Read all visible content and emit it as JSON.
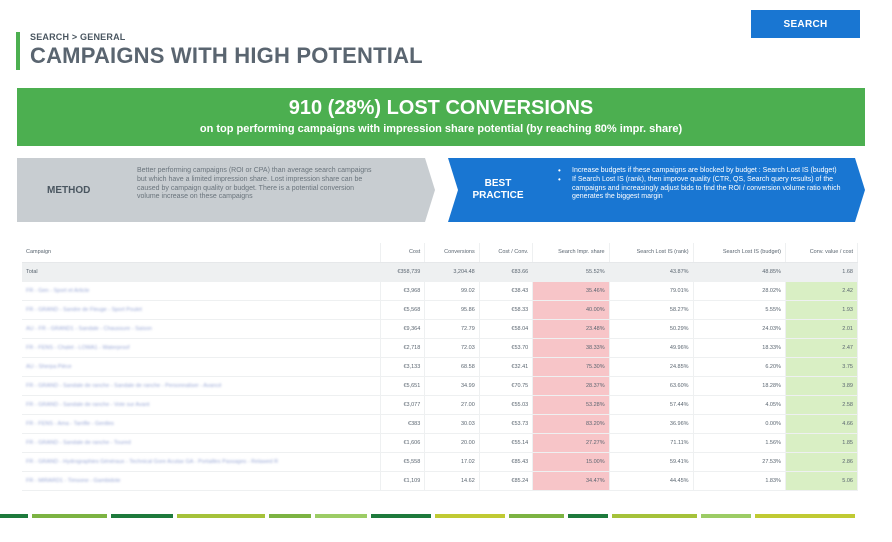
{
  "header": {
    "breadcrumb": "SEARCH > GENERAL",
    "title": "CAMPAIGNS WITH HIGH POTENTIAL"
  },
  "search_button": {
    "label": "SEARCH"
  },
  "banner": {
    "title": "910 (28%) LOST CONVERSIONS",
    "subtitle": "on top performing campaigns with impression share potential (by reaching 80% impr. share)"
  },
  "method": {
    "label": "METHOD",
    "text": "Better performing campaigns (ROI or CPA) than average search campaigns but which have a limited impression share. Lost impression share can be caused by campaign quality or budget. There is a potential conversion volume increase on these campaigns"
  },
  "best_practice": {
    "label": "BEST PRACTICE",
    "items": [
      "Increase budgets if these campaigns are blocked by budget : Search Lost IS (budget)",
      "If Search Lost IS (rank), then improve quality (CTR, QS, Search query results) of the campaigns and increasingly adjust bids to find the ROI / conversion volume ratio which generates the biggest margin"
    ]
  },
  "table": {
    "columns": [
      "Campaign",
      "Cost",
      "Conversions",
      "Cost / Conv.",
      "Search Impr. share",
      "Search Lost IS (rank)",
      "Search Lost IS (budget)",
      "Conv. value / cost"
    ],
    "total": [
      "Total",
      "€358,739",
      "3,204.48",
      "€83.66",
      "55.52%",
      "43.87%",
      "48.85%",
      "1.68"
    ],
    "rows": [
      [
        "FR - Gen - Sport et Article",
        "€3,968",
        "99.02",
        "€38.43",
        "35.46%",
        "79.01%",
        "28.02%",
        "2.42"
      ],
      [
        "FR - GRAND - Sandre de Fleuge - Sport Poulet",
        "€5,568",
        "95.86",
        "€58.33",
        "40.00%",
        "58.27%",
        "5.55%",
        "1.93"
      ],
      [
        "AU - FR - GRAND1 - Sandale - Chaussure - Saison",
        "€9,364",
        "72.79",
        "€58.04",
        "23.48%",
        "50.29%",
        "24.03%",
        "2.01"
      ],
      [
        "FR - FENS - Chalet - LOWA1 - Waterproof",
        "€2,718",
        "72.03",
        "€53.70",
        "38.33%",
        "49.96%",
        "18.33%",
        "2.47"
      ],
      [
        "AU - Sherpa Pièce",
        "€3,133",
        "68.58",
        "€32.41",
        "75.30%",
        "24.85%",
        "6.20%",
        "3.75"
      ],
      [
        "FR - GRAND - Sandale de ranche - Sandale de ranche - Personnaliser - Avancé",
        "€5,651",
        "34.99",
        "€70.75",
        "28.37%",
        "63.60%",
        "18.28%",
        "3.89"
      ],
      [
        "FR - GRAND - Sandale de ranche - Vote sur Avant",
        "€3,077",
        "27.00",
        "€55.03",
        "53.28%",
        "57.44%",
        "4.05%",
        "2.58"
      ],
      [
        "FR - FENS - Ama - Tarrifle - Gentles",
        "€383",
        "30.03",
        "€53.73",
        "83.20%",
        "36.96%",
        "0.00%",
        "4.66"
      ],
      [
        "FR - GRAND - Sandale de ranche - Toured",
        "€1,606",
        "20.00",
        "€55.14",
        "27.27%",
        "71.11%",
        "1.56%",
        "1.85"
      ],
      [
        "FR - GRAND - Hydrographies Généraux - Technical Gore Acutax GA - Portailles Passages - Relawed R",
        "€5,558",
        "17.02",
        "€85.43",
        "15.00%",
        "59.41%",
        "27.53%",
        "2.86"
      ],
      [
        "FR - MIRARD1 - Timsone - Gambidote",
        "€1,109",
        "14.62",
        "€85.24",
        "34.47%",
        "44.45%",
        "1.83%",
        "5.06"
      ]
    ]
  },
  "colors": {
    "green": "#4caf50",
    "blue": "#1976d2",
    "gray": "#c8cdd1",
    "impr_highlight": "#f7c5c8",
    "value_highlight": "#d9efc4"
  }
}
